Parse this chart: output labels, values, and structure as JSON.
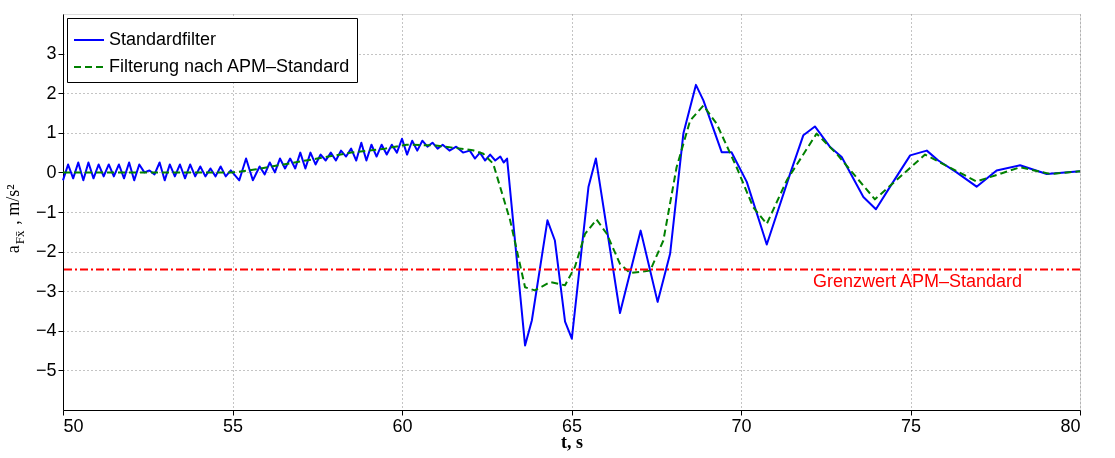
{
  "chart_data": {
    "type": "line",
    "xlabel": "t, s",
    "ylabel": "a$_{Fx̄}$, m/s²",
    "xlim": [
      50,
      80
    ],
    "xticks": [
      50,
      55,
      60,
      65,
      70,
      75,
      80
    ],
    "ylim": [
      -6,
      4
    ],
    "yticks": [
      -5,
      -4,
      -3,
      -2,
      -1,
      0,
      1,
      2,
      3
    ],
    "grid": true,
    "legend": "top left",
    "series": [
      {
        "name": "Standardfilter",
        "color": "#0000ff",
        "line_style": "solid",
        "x": [
          50.0,
          50.15,
          50.3,
          50.45,
          50.6,
          50.75,
          50.9,
          51.05,
          51.2,
          51.35,
          51.5,
          51.65,
          51.8,
          51.95,
          52.1,
          52.25,
          52.4,
          52.55,
          52.7,
          52.85,
          53.0,
          53.15,
          53.3,
          53.45,
          53.6,
          53.75,
          53.9,
          54.05,
          54.2,
          54.35,
          54.5,
          54.65,
          54.8,
          54.95,
          55.2,
          55.4,
          55.6,
          55.8,
          55.95,
          56.1,
          56.25,
          56.4,
          56.55,
          56.7,
          56.85,
          57.0,
          57.15,
          57.3,
          57.45,
          57.6,
          57.75,
          57.9,
          58.05,
          58.2,
          58.35,
          58.5,
          58.65,
          58.8,
          58.95,
          59.1,
          59.25,
          59.4,
          59.55,
          59.7,
          59.85,
          60.0,
          60.15,
          60.3,
          60.45,
          60.6,
          60.75,
          60.9,
          61.05,
          61.2,
          61.4,
          61.6,
          61.8,
          62.0,
          62.15,
          62.3,
          62.45,
          62.6,
          62.75,
          62.9,
          63.0,
          63.1,
          63.63,
          63.83,
          64.29,
          64.51,
          64.81,
          65.01,
          65.5,
          65.72,
          66.43,
          67.04,
          67.54,
          67.91,
          68.3,
          68.67,
          68.89,
          69.43,
          69.72,
          70.17,
          70.76,
          71.45,
          71.84,
          72.18,
          72.63,
          72.97,
          73.61,
          73.98,
          74.4,
          74.99,
          75.48,
          75.82,
          76.36,
          76.95,
          77.54,
          78.23,
          79.02,
          80.0
        ],
        "values": [
          -0.2,
          0.2,
          -0.15,
          0.25,
          -0.2,
          0.25,
          -0.15,
          0.2,
          -0.1,
          0.2,
          -0.1,
          0.2,
          -0.15,
          0.25,
          -0.2,
          0.2,
          0.0,
          0.05,
          -0.05,
          0.25,
          -0.2,
          0.2,
          -0.1,
          0.2,
          -0.15,
          0.2,
          -0.1,
          0.15,
          -0.1,
          0.1,
          -0.1,
          0.15,
          -0.1,
          0.05,
          -0.2,
          0.35,
          -0.2,
          0.15,
          -0.05,
          0.25,
          0.0,
          0.35,
          0.1,
          0.35,
          0.1,
          0.5,
          0.1,
          0.5,
          0.2,
          0.45,
          0.3,
          0.5,
          0.3,
          0.55,
          0.4,
          0.6,
          0.3,
          0.75,
          0.3,
          0.7,
          0.4,
          0.7,
          0.45,
          0.7,
          0.5,
          0.85,
          0.45,
          0.8,
          0.55,
          0.8,
          0.65,
          0.75,
          0.6,
          0.7,
          0.55,
          0.65,
          0.5,
          0.55,
          0.35,
          0.5,
          0.3,
          0.45,
          0.3,
          0.4,
          0.25,
          0.35,
          -4.37,
          -3.74,
          -1.21,
          -1.72,
          -3.77,
          -4.2,
          -0.37,
          0.35,
          -3.55,
          -1.47,
          -3.27,
          -2.05,
          0.98,
          2.21,
          1.82,
          0.51,
          0.51,
          -0.24,
          -1.82,
          -0.03,
          0.94,
          1.16,
          0.64,
          0.39,
          -0.62,
          -0.93,
          -0.36,
          0.43,
          0.55,
          0.3,
          0.0,
          -0.36,
          0.05,
          0.18,
          -0.04,
          0.03
        ]
      },
      {
        "name": "Filterung nach APM–Standard",
        "color": "#008000",
        "line_style": "dashed",
        "x": [
          50.0,
          55.0,
          55.5,
          56.5,
          57.5,
          58.5,
          59.5,
          60.14,
          61.0,
          62.09,
          62.4,
          62.69,
          63.19,
          63.63,
          63.92,
          64.37,
          64.81,
          65.1,
          65.4,
          65.74,
          66.04,
          66.43,
          66.73,
          67.32,
          67.71,
          68.1,
          68.5,
          68.89,
          69.28,
          69.87,
          70.36,
          70.76,
          71.35,
          72.23,
          72.82,
          73.95,
          75.43,
          76.95,
          78.23,
          79.12,
          80.0
        ],
        "values": [
          0.0,
          0.0,
          0.05,
          0.2,
          0.35,
          0.5,
          0.6,
          0.7,
          0.68,
          0.56,
          0.47,
          0.22,
          -1.21,
          -2.9,
          -2.98,
          -2.77,
          -2.85,
          -2.39,
          -1.55,
          -1.19,
          -1.55,
          -2.31,
          -2.54,
          -2.48,
          -1.72,
          0.13,
          1.31,
          1.69,
          1.23,
          0.13,
          -0.88,
          -1.3,
          -0.2,
          0.98,
          0.47,
          -0.68,
          0.45,
          -0.23,
          0.13,
          -0.04,
          0.03
        ]
      }
    ],
    "ref_lines": [
      {
        "axis": "y",
        "value": -2.45,
        "label": "Grenzwert APM–Standard",
        "color": "#ff0000",
        "line_style": "dashdot"
      }
    ]
  }
}
